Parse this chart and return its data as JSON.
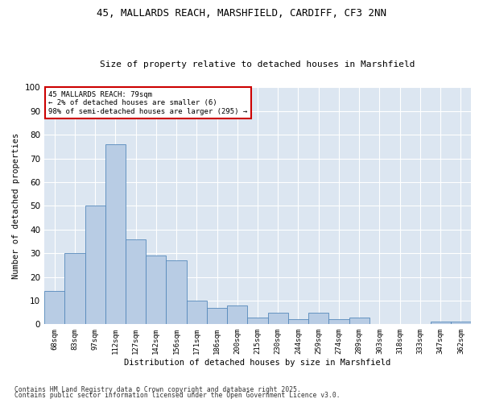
{
  "title1": "45, MALLARDS REACH, MARSHFIELD, CARDIFF, CF3 2NN",
  "title2": "Size of property relative to detached houses in Marshfield",
  "xlabel": "Distribution of detached houses by size in Marshfield",
  "ylabel": "Number of detached properties",
  "categories": [
    "68sqm",
    "83sqm",
    "97sqm",
    "112sqm",
    "127sqm",
    "142sqm",
    "156sqm",
    "171sqm",
    "186sqm",
    "200sqm",
    "215sqm",
    "230sqm",
    "244sqm",
    "259sqm",
    "274sqm",
    "289sqm",
    "303sqm",
    "318sqm",
    "333sqm",
    "347sqm",
    "362sqm"
  ],
  "values": [
    14,
    30,
    50,
    76,
    36,
    29,
    27,
    10,
    7,
    8,
    3,
    5,
    2,
    5,
    2,
    3,
    0,
    0,
    0,
    1,
    1
  ],
  "bar_color": "#b8cce4",
  "bar_edge_color": "#5588bb",
  "annotation_title": "45 MALLARDS REACH: 79sqm",
  "annotation_line1": "← 2% of detached houses are smaller (6)",
  "annotation_line2": "98% of semi-detached houses are larger (295) →",
  "annotation_box_color": "#ffffff",
  "annotation_box_edge_color": "#cc0000",
  "footer1": "Contains HM Land Registry data © Crown copyright and database right 2025.",
  "footer2": "Contains public sector information licensed under the Open Government Licence v3.0.",
  "bg_color": "#dce6f1",
  "fig_bg_color": "#ffffff",
  "ylim": [
    0,
    100
  ],
  "yticks": [
    0,
    10,
    20,
    30,
    40,
    50,
    60,
    70,
    80,
    90,
    100
  ]
}
